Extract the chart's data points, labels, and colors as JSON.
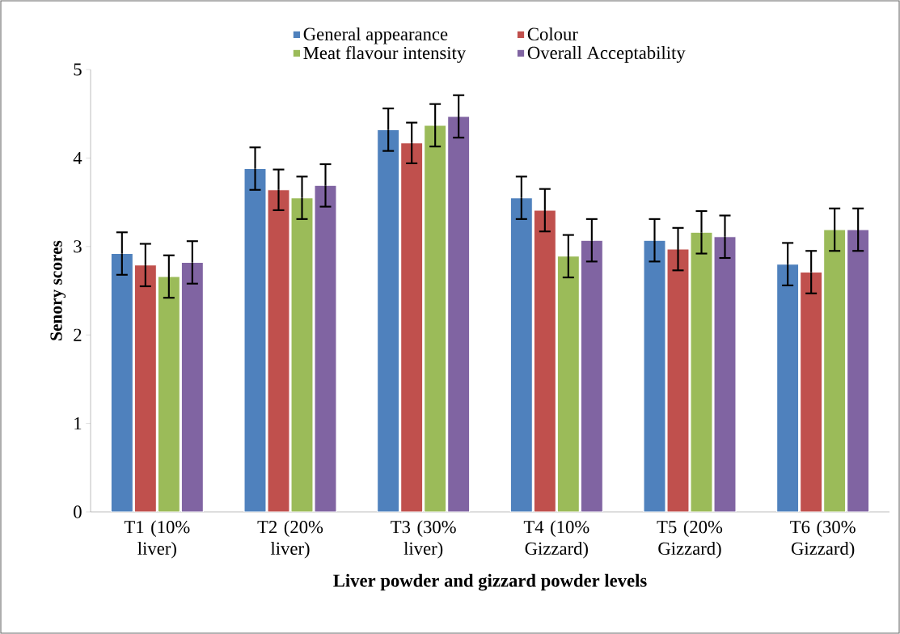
{
  "chart_data": {
    "type": "bar",
    "xlabel": "Liver powder and gizzard powder levels",
    "ylabel": "Senory scores",
    "categories": [
      "T1 (10% liver)",
      "T2 (20% liver)",
      "T3 (30% liver)",
      "T4 (10% Gizzard)",
      "T5 (20% Gizzard)",
      "T6 (30% Gizzard)"
    ],
    "series": [
      {
        "name": "General appearance",
        "color": "#4f81bd",
        "values": [
          2.92,
          3.88,
          4.32,
          3.55,
          3.07,
          2.8
        ],
        "errors": [
          0.24,
          0.24,
          0.24,
          0.24,
          0.24,
          0.24
        ]
      },
      {
        "name": "Colour",
        "color": "#c0504d",
        "values": [
          2.79,
          3.64,
          4.17,
          3.41,
          2.97,
          2.71
        ],
        "errors": [
          0.24,
          0.23,
          0.23,
          0.24,
          0.24,
          0.24
        ]
      },
      {
        "name": "Meat flavour intensity",
        "color": "#9bbb59",
        "values": [
          2.66,
          3.55,
          4.37,
          2.89,
          3.16,
          3.19
        ],
        "errors": [
          0.24,
          0.24,
          0.24,
          0.24,
          0.24,
          0.24
        ]
      },
      {
        "name": "Overall Acceptability",
        "color": "#8064a2",
        "values": [
          2.82,
          3.69,
          4.47,
          3.07,
          3.11,
          3.19
        ],
        "errors": [
          0.24,
          0.24,
          0.24,
          0.24,
          0.24,
          0.24
        ]
      }
    ],
    "ylim": [
      0,
      5
    ],
    "yticks": [
      0,
      1,
      2,
      3,
      4,
      5
    ],
    "grid": false,
    "legend": "top"
  }
}
